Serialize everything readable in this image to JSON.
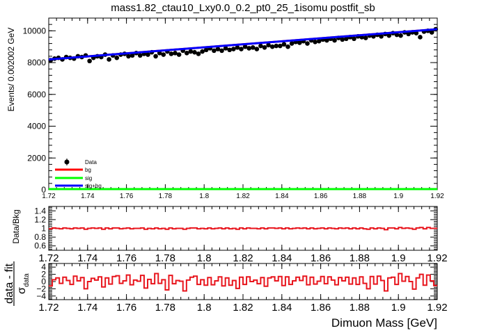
{
  "chart_data": [
    {
      "type": "scatter",
      "title": "mass1.82_ctau10_Lxy0.0_0.2_pt0_25_1isomu   postfit_sb",
      "ylabel": "Events/ 0.002002 GeV",
      "xlim": [
        1.72,
        1.92
      ],
      "ylim": [
        0,
        10800
      ],
      "x_ticks": [
        "1.72",
        "1.74",
        "1.76",
        "1.78",
        "1.8",
        "1.82",
        "1.84",
        "1.86",
        "1.88",
        "1.9",
        "1.92"
      ],
      "y_ticks": [
        "0",
        "2000",
        "4000",
        "6000",
        "8000",
        "10000"
      ],
      "legend": {
        "placement": "bottom-left",
        "entries": [
          {
            "label": "Data",
            "color": "#000000",
            "marker": "point"
          },
          {
            "label": "bg",
            "color": "#ff0000",
            "marker": "line"
          },
          {
            "label": "sig",
            "color": "#00ff00",
            "marker": "line"
          },
          {
            "label": "sig+bg",
            "color": "#0000ff",
            "marker": "line"
          }
        ]
      },
      "series": [
        {
          "name": "Data",
          "color": "#000000",
          "x_start": 1.721,
          "x_step": 0.002002,
          "values": [
            8150,
            8250,
            8300,
            8200,
            8350,
            8300,
            8250,
            8400,
            8350,
            8450,
            8100,
            8300,
            8400,
            8350,
            8500,
            8200,
            8450,
            8300,
            8500,
            8550,
            8400,
            8450,
            8600,
            8450,
            8550,
            8500,
            8650,
            8400,
            8600,
            8500,
            8700,
            8550,
            8600,
            8500,
            8750,
            8600,
            8700,
            8650,
            8550,
            8700,
            8800,
            8900,
            8750,
            8850,
            8750,
            8900,
            8800,
            8850,
            8950,
            8850,
            9000,
            8900,
            8950,
            8850,
            9050,
            8950,
            9100,
            9000,
            9050,
            9050,
            9150,
            9000,
            9200,
            9300,
            9250,
            9350,
            9200,
            9400,
            9300,
            9350,
            9450,
            9400,
            9500,
            9400,
            9550,
            9450,
            9500,
            9600,
            9500,
            9650,
            9600,
            9550,
            9700,
            9650,
            9750,
            9650,
            9800,
            9700,
            9850,
            9750,
            9700,
            9900,
            9800,
            9900,
            9850,
            9600,
            9950,
            10000,
            9900,
            10100,
            9950,
            10050,
            10000,
            9800,
            10150,
            10200,
            10050,
            10250,
            10150,
            10200
          ]
        },
        {
          "name": "bg",
          "color": "#ff0000",
          "x": [
            1.72,
            1.92
          ],
          "values": [
            8200,
            10100
          ]
        },
        {
          "name": "sig",
          "color": "#00ff00",
          "x": [
            1.72,
            1.92
          ],
          "values": [
            0,
            0
          ]
        },
        {
          "name": "sig+bg",
          "color": "#0000ff",
          "x": [
            1.72,
            1.92
          ],
          "values": [
            8200,
            10100
          ]
        }
      ]
    },
    {
      "type": "line",
      "ylabel": "Data/Bkg",
      "xlim": [
        1.72,
        1.92
      ],
      "ylim": [
        0.5,
        1.5
      ],
      "x_ticks": [
        "1.72",
        "1.74",
        "1.76",
        "1.78",
        "1.8",
        "1.82",
        "1.84",
        "1.86",
        "1.88",
        "1.9",
        "1.92"
      ],
      "y_ticks": [
        "0.6",
        "0.8",
        "1",
        "1.2",
        "1.4"
      ],
      "series": [
        {
          "name": "ratio",
          "color": "#e8141c",
          "values": [
            0.99,
            1.01,
            1.0,
            0.99,
            1.01,
            1.0,
            0.99,
            1.01,
            1.0,
            1.01,
            0.98,
            1.0,
            1.01,
            1.0,
            1.01,
            0.98,
            1.01,
            0.99,
            1.01,
            1.01,
            0.99,
            1.0,
            1.01,
            0.99,
            1.0,
            1.0,
            1.01,
            0.98,
            1.0,
            0.99,
            1.01,
            0.99,
            1.0,
            0.98,
            1.01,
            0.99,
            1.0,
            1.0,
            0.98,
            1.0,
            1.01,
            1.01,
            0.99,
            1.0,
            0.99,
            1.01,
            0.99,
            1.0,
            1.01,
            0.99,
            1.01,
            0.99,
            1.0,
            0.98,
            1.01,
            0.99,
            1.01,
            1.0,
            1.0,
            0.99,
            1.01,
            0.99,
            1.01,
            1.01,
            1.0,
            1.01,
            0.99,
            1.01,
            0.99,
            1.0,
            1.01,
            1.0,
            1.01,
            0.99,
            1.01,
            0.99,
            1.0,
            1.01,
            0.99,
            1.01,
            1.0,
            0.99,
            1.01,
            1.0,
            1.01,
            0.99,
            1.01,
            0.99,
            1.01,
            0.99,
            0.98,
            1.01,
            0.99,
            1.01,
            1.0,
            0.97,
            1.01,
            1.01,
            0.99,
            1.02,
            1.0,
            1.01,
            1.0,
            0.98,
            1.01,
            1.02,
            0.99,
            1.02,
            1.0,
            1.0
          ]
        }
      ]
    },
    {
      "type": "line",
      "ylabel": "data - fit",
      "ylabel_sub": "σ",
      "ylabel_sub_small": "data",
      "xlabel": "Dimuon Mass [GeV]",
      "xlim": [
        1.72,
        1.92
      ],
      "ylim": [
        -5,
        5
      ],
      "x_ticks": [
        "1.72",
        "1.74",
        "1.76",
        "1.78",
        "1.8",
        "1.82",
        "1.84",
        "1.86",
        "1.88",
        "1.9",
        "1.92"
      ],
      "y_ticks": [
        "−4",
        "−2",
        "0",
        "2",
        "4"
      ],
      "series": [
        {
          "name": "pull",
          "color": "#e8141c",
          "values": [
            -1.2,
            0.5,
            1.0,
            -0.5,
            1.2,
            0.3,
            -0.8,
            1.5,
            0.2,
            1.1,
            -2.0,
            0.0,
            0.9,
            0.4,
            1.3,
            -1.5,
            1.0,
            -0.7,
            1.4,
            1.6,
            -0.5,
            0.2,
            1.8,
            -0.9,
            0.4,
            0.1,
            1.7,
            -1.8,
            0.6,
            -0.6,
            2.2,
            -0.5,
            0.5,
            -2.3,
            1.7,
            -0.6,
            0.3,
            0.1,
            -2.6,
            0.4,
            1.2,
            1.5,
            -0.8,
            0.5,
            -1.0,
            1.1,
            -0.9,
            0.2,
            1.3,
            -1.2,
            1.0,
            -1.0,
            0.3,
            -1.9,
            1.2,
            -0.8,
            1.3,
            0.0,
            0.4,
            -0.6,
            1.1,
            -1.3,
            1.0,
            1.3,
            0.2,
            1.4,
            -1.1,
            1.3,
            -0.8,
            0.2,
            1.2,
            0.3,
            1.5,
            -0.9,
            1.2,
            -0.7,
            0.1,
            1.4,
            -0.6,
            1.3,
            0.4,
            -0.9,
            1.1,
            0.2,
            1.2,
            -0.7,
            1.0,
            -0.8,
            1.3,
            -0.5,
            -2.0,
            1.4,
            -0.7,
            1.5,
            0.3,
            -2.6,
            1.0,
            1.2,
            -0.8,
            2.2,
            0.1,
            1.4,
            0.0,
            -2.1,
            1.0,
            2.0,
            -1.0,
            1.8,
            0.2,
            -1.1
          ]
        }
      ]
    }
  ]
}
